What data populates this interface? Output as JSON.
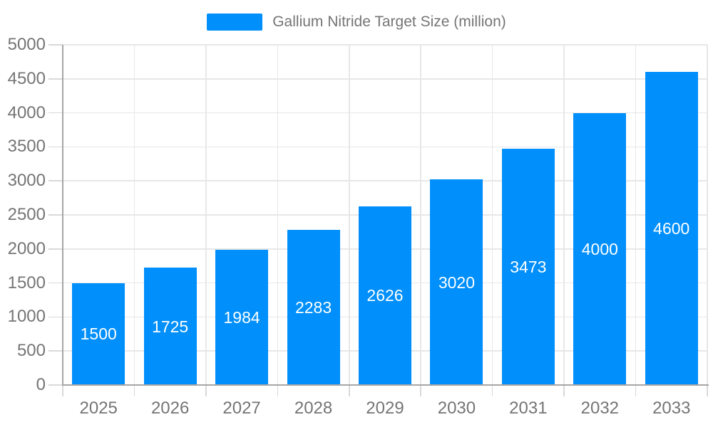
{
  "chart_data": {
    "type": "bar",
    "title": "Gallium Nitride Target Size (million)",
    "legend_label": "Gallium Nitride Target Size (million)",
    "legend_position": "top",
    "categories": [
      "2025",
      "2026",
      "2027",
      "2028",
      "2029",
      "2030",
      "2031",
      "2032",
      "2033"
    ],
    "series": [
      {
        "name": "Gallium Nitride Target Size (million)",
        "values": [
          1500,
          1725,
          1984,
          2283,
          2626,
          3020,
          3473,
          4000,
          4600
        ]
      }
    ],
    "values": [
      1500,
      1725,
      1984,
      2283,
      2626,
      3020,
      3473,
      4000,
      4600
    ],
    "value_labels": [
      "1500",
      "1725",
      "1984",
      "2283",
      "2626",
      "3020",
      "3473",
      "4000",
      "4600"
    ],
    "xlabel": "",
    "ylabel": "",
    "ylim": [
      0,
      5000
    ],
    "yticks": [
      0,
      500,
      1000,
      1500,
      2000,
      2500,
      3000,
      3500,
      4000,
      4500,
      5000
    ],
    "grid": true,
    "colors": {
      "bar": "#008FFB",
      "value_label_text": "#FFFFFF",
      "axis_text": "#757575",
      "legend_text": "#757575",
      "gridline": "#E7E7E7",
      "tick": "#D9D9D9",
      "axis_line": "#A6A6A6"
    }
  }
}
